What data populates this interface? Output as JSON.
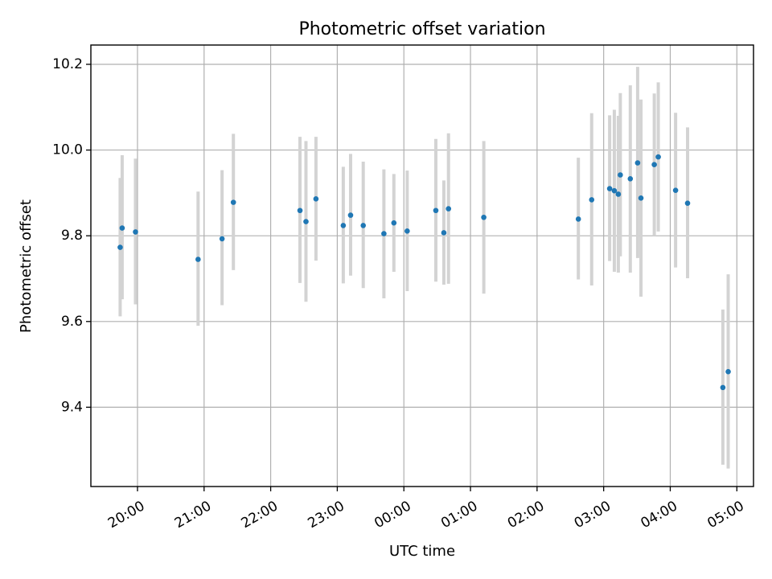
{
  "chart_data": {
    "type": "scatter",
    "title": "Photometric offset variation",
    "xlabel": "UTC time",
    "ylabel": "Photometric offset",
    "grid": true,
    "x_unit": "hours since 00:00 UTC (negative = previous evening)",
    "xlim": [
      -4.7,
      5.25
    ],
    "ylim": [
      9.215,
      10.245
    ],
    "x_ticks": [
      {
        "value": -4,
        "label": "20:00"
      },
      {
        "value": -3,
        "label": "21:00"
      },
      {
        "value": -2,
        "label": "22:00"
      },
      {
        "value": -1,
        "label": "23:00"
      },
      {
        "value": 0,
        "label": "00:00"
      },
      {
        "value": 1,
        "label": "01:00"
      },
      {
        "value": 2,
        "label": "02:00"
      },
      {
        "value": 3,
        "label": "03:00"
      },
      {
        "value": 4,
        "label": "04:00"
      },
      {
        "value": 5,
        "label": "05:00"
      }
    ],
    "y_ticks": [
      {
        "value": 9.4,
        "label": "9.4"
      },
      {
        "value": 9.6,
        "label": "9.6"
      },
      {
        "value": 9.8,
        "label": "9.8"
      },
      {
        "value": 10.0,
        "label": "10.0"
      },
      {
        "value": 10.2,
        "label": "10.2"
      }
    ],
    "series": [
      {
        "name": "offset",
        "color": "#1f77b4",
        "error_color": "#d3d3d3",
        "points": [
          {
            "x": -4.26,
            "y": 9.773,
            "lo": 9.612,
            "hi": 9.935
          },
          {
            "x": -4.23,
            "y": 9.818,
            "lo": 9.652,
            "hi": 9.988
          },
          {
            "x": -4.03,
            "y": 9.809,
            "lo": 9.64,
            "hi": 9.98
          },
          {
            "x": -3.09,
            "y": 9.745,
            "lo": 9.59,
            "hi": 9.903
          },
          {
            "x": -2.73,
            "y": 9.793,
            "lo": 9.638,
            "hi": 9.953
          },
          {
            "x": -2.56,
            "y": 9.878,
            "lo": 9.72,
            "hi": 10.038
          },
          {
            "x": -1.56,
            "y": 9.859,
            "lo": 9.69,
            "hi": 10.031
          },
          {
            "x": -1.47,
            "y": 9.833,
            "lo": 9.646,
            "hi": 10.021
          },
          {
            "x": -1.32,
            "y": 9.886,
            "lo": 9.742,
            "hi": 10.031
          },
          {
            "x": -0.91,
            "y": 9.824,
            "lo": 9.689,
            "hi": 9.961
          },
          {
            "x": -0.8,
            "y": 9.848,
            "lo": 9.707,
            "hi": 9.991
          },
          {
            "x": -0.61,
            "y": 9.824,
            "lo": 9.678,
            "hi": 9.973
          },
          {
            "x": -0.3,
            "y": 9.805,
            "lo": 9.654,
            "hi": 9.955
          },
          {
            "x": -0.15,
            "y": 9.83,
            "lo": 9.716,
            "hi": 9.944
          },
          {
            "x": 0.05,
            "y": 9.811,
            "lo": 9.671,
            "hi": 9.952
          },
          {
            "x": 0.48,
            "y": 9.859,
            "lo": 9.693,
            "hi": 10.026
          },
          {
            "x": 0.6,
            "y": 9.807,
            "lo": 9.686,
            "hi": 9.929
          },
          {
            "x": 0.67,
            "y": 9.863,
            "lo": 9.688,
            "hi": 10.039
          },
          {
            "x": 1.2,
            "y": 9.843,
            "lo": 9.665,
            "hi": 10.021
          },
          {
            "x": 2.62,
            "y": 9.839,
            "lo": 9.698,
            "hi": 9.982
          },
          {
            "x": 2.82,
            "y": 9.884,
            "lo": 9.684,
            "hi": 10.086
          },
          {
            "x": 3.09,
            "y": 9.91,
            "lo": 9.741,
            "hi": 10.081
          },
          {
            "x": 3.16,
            "y": 9.905,
            "lo": 9.716,
            "hi": 10.094
          },
          {
            "x": 3.22,
            "y": 9.897,
            "lo": 9.714,
            "hi": 10.08
          },
          {
            "x": 3.25,
            "y": 9.942,
            "lo": 9.752,
            "hi": 10.133
          },
          {
            "x": 3.4,
            "y": 9.933,
            "lo": 9.714,
            "hi": 10.151
          },
          {
            "x": 3.51,
            "y": 9.97,
            "lo": 9.748,
            "hi": 10.194
          },
          {
            "x": 3.56,
            "y": 9.888,
            "lo": 9.658,
            "hi": 10.118
          },
          {
            "x": 3.76,
            "y": 9.966,
            "lo": 9.8,
            "hi": 10.132
          },
          {
            "x": 3.82,
            "y": 9.984,
            "lo": 9.81,
            "hi": 10.158
          },
          {
            "x": 4.08,
            "y": 9.906,
            "lo": 9.726,
            "hi": 10.087
          },
          {
            "x": 4.26,
            "y": 9.876,
            "lo": 9.701,
            "hi": 10.053
          },
          {
            "x": 4.79,
            "y": 9.446,
            "lo": 9.266,
            "hi": 9.628
          },
          {
            "x": 4.87,
            "y": 9.483,
            "lo": 9.257,
            "hi": 9.71
          }
        ]
      }
    ]
  }
}
